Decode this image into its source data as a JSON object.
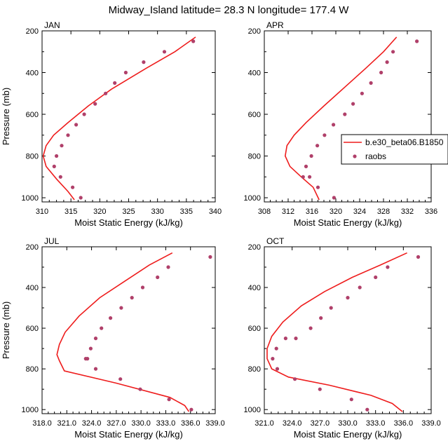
{
  "title": "Midway_Island  latitude= 28.3 N longitude= 177.4 W",
  "colors": {
    "model": "#ee1c1c",
    "obs": "#b0406a"
  },
  "legend": {
    "model_label": "b.e30_beta06.B1850",
    "obs_label": "raobs",
    "placement": "right of APR panel"
  },
  "chart_data": [
    {
      "type": "line",
      "panel_label": "JAN",
      "xlabel": "Moist Static Energy (kJ/kg)",
      "ylabel": "Pressure (mb)",
      "xlim": [
        310,
        340
      ],
      "ylim": [
        1020,
        200
      ],
      "xticks": [
        "310",
        "315",
        "320",
        "325",
        "330",
        "335",
        "340"
      ],
      "yticks": [
        "200",
        "400",
        "600",
        "800",
        "1000"
      ],
      "series": [
        {
          "name": "b.e30_beta06.B1850",
          "kind": "line",
          "x": [
            336.6,
            333.0,
            328.0,
            322.0,
            318.0,
            314.5,
            312.0,
            310.7,
            310.2,
            310.7,
            312.5,
            314.5,
            315.6
          ],
          "y": [
            230,
            300,
            380,
            480,
            560,
            640,
            700,
            750,
            800,
            850,
            910,
            970,
            1010
          ]
        },
        {
          "name": "raobs",
          "kind": "scatter",
          "x": [
            336.2,
            331.2,
            327.6,
            324.5,
            322.6,
            321.0,
            319.2,
            317.3,
            315.9,
            314.5,
            313.4,
            312.5,
            312.1,
            313.2,
            315.3,
            316.7
          ],
          "y": [
            250,
            300,
            350,
            400,
            450,
            500,
            550,
            600,
            650,
            700,
            750,
            800,
            850,
            900,
            950,
            1000
          ]
        }
      ]
    },
    {
      "type": "line",
      "panel_label": "APR",
      "xlabel": "Moist Static Energy (kJ/kg)",
      "ylabel": "",
      "xlim": [
        308,
        336
      ],
      "ylim": [
        1020,
        200
      ],
      "xticks": [
        "308",
        "312",
        "316",
        "320",
        "324",
        "328",
        "332",
        "336"
      ],
      "yticks": [
        "200",
        "400",
        "600",
        "800",
        "1000"
      ],
      "series": [
        {
          "name": "b.e30_beta06.B1850",
          "kind": "line",
          "x": [
            330.2,
            328.0,
            325.0,
            321.5,
            318.0,
            315.0,
            313.0,
            311.8,
            311.5,
            312.3,
            314.2,
            316.2,
            317.2
          ],
          "y": [
            230,
            300,
            380,
            470,
            560,
            640,
            700,
            750,
            800,
            850,
            900,
            950,
            1010
          ]
        },
        {
          "name": "raobs",
          "kind": "scatter",
          "x": [
            333.6,
            329.6,
            328.6,
            327.6,
            325.9,
            324.4,
            322.9,
            321.5,
            319.6,
            318.1,
            316.9,
            315.9,
            315.0,
            314.5,
            315.6,
            317.0,
            319.7
          ],
          "y": [
            250,
            300,
            350,
            400,
            450,
            500,
            550,
            600,
            650,
            700,
            750,
            800,
            850,
            900,
            900,
            950,
            1000
          ]
        }
      ]
    },
    {
      "type": "line",
      "panel_label": "JUL",
      "xlabel": "Moist Static Energy (kJ/kg)",
      "ylabel": "Pressure (mb)",
      "xlim": [
        318,
        339
      ],
      "ylim": [
        1020,
        200
      ],
      "xticks": [
        "318.0",
        "321.0",
        "324.0",
        "327.0",
        "330.0",
        "333.0",
        "336.0",
        "339.0"
      ],
      "yticks": [
        "200",
        "400",
        "600",
        "800",
        "1000"
      ],
      "series": [
        {
          "name": "b.e30_beta06.B1850",
          "kind": "line",
          "x": [
            333.8,
            331.0,
            328.0,
            325.0,
            322.5,
            320.8,
            320.1,
            319.8,
            320.1,
            320.7,
            327.0,
            333.5,
            335.3,
            335.8
          ],
          "y": [
            230,
            290,
            370,
            450,
            540,
            620,
            680,
            730,
            760,
            810,
            870,
            940,
            980,
            1010
          ]
        },
        {
          "name": "raobs",
          "kind": "scatter",
          "x": [
            338.4,
            333.3,
            332.0,
            330.2,
            328.9,
            327.6,
            326.3,
            325.2,
            324.5,
            323.9,
            323.3,
            323.5,
            324.5,
            327.5,
            329.9,
            333.4,
            336.1
          ],
          "y": [
            250,
            300,
            350,
            400,
            450,
            500,
            550,
            600,
            650,
            700,
            750,
            750,
            800,
            850,
            900,
            950,
            1000
          ]
        }
      ]
    },
    {
      "type": "line",
      "panel_label": "OCT",
      "xlabel": "Moist Static Energy (kJ/kg)",
      "ylabel": "",
      "xlim": [
        321,
        339
      ],
      "ylim": [
        1020,
        200
      ],
      "xticks": [
        "321.0",
        "324.0",
        "327.0",
        "330.0",
        "333.0",
        "336.0",
        "339.0"
      ],
      "yticks": [
        "200",
        "400",
        "600",
        "800",
        "1000"
      ],
      "series": [
        {
          "name": "b.e30_beta06.B1850",
          "kind": "line",
          "x": [
            336.4,
            333.5,
            330.5,
            327.5,
            325.0,
            323.0,
            321.8,
            321.3,
            321.3,
            321.8,
            323.6,
            328.0,
            332.5,
            334.8,
            335.9
          ],
          "y": [
            230,
            290,
            350,
            420,
            490,
            570,
            640,
            700,
            750,
            800,
            840,
            880,
            930,
            970,
            1010
          ]
        },
        {
          "name": "raobs",
          "kind": "scatter",
          "x": [
            337.6,
            334.3,
            333.0,
            331.3,
            330.0,
            328.2,
            327.1,
            326.0,
            324.4,
            323.3,
            322.3,
            321.9,
            322.4,
            324.3,
            327.0,
            330.4,
            332.1
          ],
          "y": [
            250,
            300,
            350,
            400,
            450,
            500,
            550,
            600,
            650,
            650,
            700,
            750,
            800,
            850,
            900,
            950,
            1000
          ]
        }
      ]
    }
  ]
}
